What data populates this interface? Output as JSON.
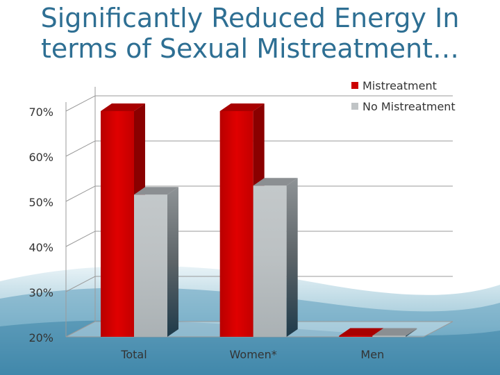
{
  "slide": {
    "title_line1": "Significantly Reduced Energy In",
    "title_line2": "terms of Sexual Mistreatment…"
  },
  "colors": {
    "title": "#2e6f93",
    "series_mistreatment": "#cc0000",
    "series_no_mistreatment": "#c0c4c6",
    "grid": "#9a9a9a"
  },
  "chart_data": {
    "type": "bar",
    "categories": [
      "Total",
      "Women*",
      "Men"
    ],
    "series": [
      {
        "name": "Mistreatment",
        "values": [
          70,
          70,
          20
        ]
      },
      {
        "name": "No Mistreatment",
        "values": [
          51.5,
          53.5,
          20
        ]
      }
    ],
    "y_ticks": [
      "70%",
      "60%",
      "50%",
      "40%",
      "30%",
      "20%"
    ],
    "ylim": [
      20,
      72
    ],
    "grid": true,
    "legend_position": "top-right",
    "style": "3d-clustered-column"
  }
}
